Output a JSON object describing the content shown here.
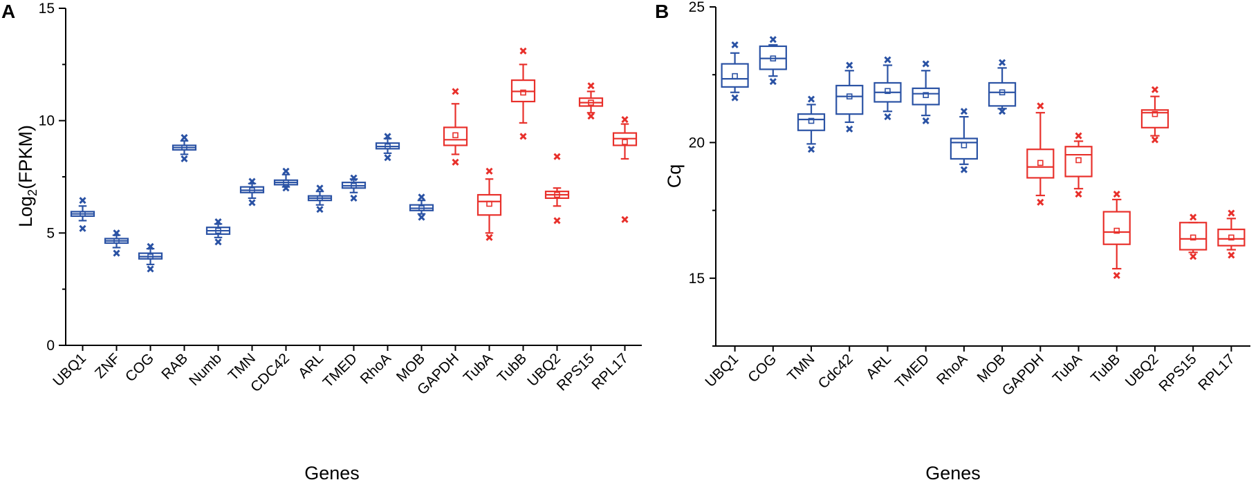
{
  "colors": {
    "blue": "#2a52a4",
    "red": "#e8302b"
  },
  "chart_data": [
    {
      "type": "box",
      "panel": "A",
      "xlabel": "Genes",
      "ylabel_main": "Log",
      "ylabel_sub": "2",
      "ylabel_rest": "(FPKM)",
      "ylim": [
        0,
        15
      ],
      "yticks": [
        0,
        5,
        10,
        15
      ],
      "series": [
        {
          "name": "UBQ1",
          "color": "blue",
          "q1": 5.75,
          "median": 5.85,
          "q3": 5.95,
          "mean": 5.85,
          "wlow": 5.55,
          "whigh": 6.2,
          "outliers": [
            5.2,
            6.45
          ]
        },
        {
          "name": "ZNF",
          "color": "blue",
          "q1": 4.55,
          "median": 4.65,
          "q3": 4.75,
          "mean": 4.65,
          "wlow": 4.35,
          "whigh": 4.9,
          "outliers": [
            4.1,
            5.0
          ]
        },
        {
          "name": "COG",
          "color": "blue",
          "q1": 3.85,
          "median": 3.95,
          "q3": 4.1,
          "mean": 3.95,
          "wlow": 3.6,
          "whigh": 4.3,
          "outliers": [
            3.4,
            4.4
          ]
        },
        {
          "name": "RAB",
          "color": "blue",
          "q1": 8.7,
          "median": 8.8,
          "q3": 8.9,
          "mean": 8.8,
          "wlow": 8.5,
          "whigh": 9.1,
          "outliers": [
            8.3,
            9.25
          ]
        },
        {
          "name": "Numb",
          "color": "blue",
          "q1": 4.95,
          "median": 5.1,
          "q3": 5.25,
          "mean": 5.1,
          "wlow": 4.8,
          "whigh": 5.4,
          "outliers": [
            4.6,
            5.5
          ]
        },
        {
          "name": "TMN",
          "color": "blue",
          "q1": 6.8,
          "median": 6.9,
          "q3": 7.05,
          "mean": 6.9,
          "wlow": 6.55,
          "whigh": 7.2,
          "outliers": [
            6.35,
            7.3
          ]
        },
        {
          "name": "CDC42",
          "color": "blue",
          "q1": 7.15,
          "median": 7.25,
          "q3": 7.35,
          "mean": 7.25,
          "wlow": 7.05,
          "whigh": 7.6,
          "outliers": [
            7.0,
            7.75
          ]
        },
        {
          "name": "ARL",
          "color": "blue",
          "q1": 6.45,
          "median": 6.55,
          "q3": 6.65,
          "mean": 6.55,
          "wlow": 6.25,
          "whigh": 6.85,
          "outliers": [
            6.05,
            7.0
          ]
        },
        {
          "name": "TMED",
          "color": "blue",
          "q1": 7.0,
          "median": 7.1,
          "q3": 7.25,
          "mean": 7.1,
          "wlow": 6.8,
          "whigh": 7.4,
          "outliers": [
            6.55,
            7.45
          ]
        },
        {
          "name": "RhoA",
          "color": "blue",
          "q1": 8.75,
          "median": 8.85,
          "q3": 9.0,
          "mean": 8.85,
          "wlow": 8.55,
          "whigh": 9.2,
          "outliers": [
            8.35,
            9.3
          ]
        },
        {
          "name": "MOB",
          "color": "blue",
          "q1": 6.0,
          "median": 6.1,
          "q3": 6.25,
          "mean": 6.1,
          "wlow": 5.85,
          "whigh": 6.45,
          "outliers": [
            5.7,
            6.6
          ]
        },
        {
          "name": "GAPDH",
          "color": "red",
          "q1": 8.9,
          "median": 9.15,
          "q3": 9.7,
          "mean": 9.35,
          "wlow": 8.5,
          "whigh": 10.75,
          "outliers": [
            8.15,
            11.3
          ]
        },
        {
          "name": "TubA",
          "color": "red",
          "q1": 5.8,
          "median": 6.4,
          "q3": 6.7,
          "mean": 6.3,
          "wlow": 5.0,
          "whigh": 7.4,
          "outliers": [
            4.8,
            7.75
          ]
        },
        {
          "name": "TubB",
          "color": "red",
          "q1": 10.85,
          "median": 11.3,
          "q3": 11.8,
          "mean": 11.25,
          "wlow": 9.9,
          "whigh": 12.5,
          "outliers": [
            9.3,
            13.1
          ]
        },
        {
          "name": "UBQ2",
          "color": "red",
          "q1": 6.55,
          "median": 6.7,
          "q3": 6.85,
          "mean": 6.7,
          "wlow": 6.2,
          "whigh": 7.0,
          "outliers": [
            5.55,
            8.4
          ]
        },
        {
          "name": "RPS15",
          "color": "red",
          "q1": 10.65,
          "median": 10.8,
          "q3": 11.0,
          "mean": 10.8,
          "wlow": 10.35,
          "whigh": 11.3,
          "outliers": [
            10.2,
            11.55
          ]
        },
        {
          "name": "RPL17",
          "color": "red",
          "q1": 8.9,
          "median": 9.2,
          "q3": 9.45,
          "mean": 9.05,
          "wlow": 8.3,
          "whigh": 9.85,
          "outliers": [
            5.6,
            10.05
          ]
        }
      ]
    },
    {
      "type": "box",
      "panel": "B",
      "xlabel": "Genes",
      "ylabel_main": "Cq",
      "ylabel_sub": "",
      "ylabel_rest": "",
      "ylim": [
        12.5,
        25
      ],
      "yticks": [
        15,
        20,
        25
      ],
      "series": [
        {
          "name": "UBQ1",
          "color": "blue",
          "q1": 22.05,
          "median": 22.35,
          "q3": 22.9,
          "mean": 22.45,
          "wlow": 21.85,
          "whigh": 23.3,
          "outliers": [
            21.65,
            23.6
          ]
        },
        {
          "name": "COG",
          "color": "blue",
          "q1": 22.7,
          "median": 23.1,
          "q3": 23.55,
          "mean": 23.1,
          "wlow": 22.45,
          "whigh": 23.6,
          "outliers": [
            22.25,
            23.8
          ]
        },
        {
          "name": "TMN",
          "color": "blue",
          "q1": 20.45,
          "median": 20.85,
          "q3": 21.05,
          "mean": 20.8,
          "wlow": 19.95,
          "whigh": 21.4,
          "outliers": [
            19.75,
            21.6
          ]
        },
        {
          "name": "Cdc42",
          "color": "blue",
          "q1": 21.05,
          "median": 21.7,
          "q3": 22.1,
          "mean": 21.7,
          "wlow": 20.75,
          "whigh": 22.65,
          "outliers": [
            20.5,
            22.85
          ]
        },
        {
          "name": "ARL",
          "color": "blue",
          "q1": 21.5,
          "median": 21.85,
          "q3": 22.2,
          "mean": 21.9,
          "wlow": 21.15,
          "whigh": 22.85,
          "outliers": [
            20.95,
            23.05
          ]
        },
        {
          "name": "TMED",
          "color": "blue",
          "q1": 21.4,
          "median": 21.8,
          "q3": 22.0,
          "mean": 21.75,
          "wlow": 21.0,
          "whigh": 22.65,
          "outliers": [
            20.8,
            22.9
          ]
        },
        {
          "name": "RhoA",
          "color": "blue",
          "q1": 19.4,
          "median": 20.0,
          "q3": 20.15,
          "mean": 19.9,
          "wlow": 19.2,
          "whigh": 20.95,
          "outliers": [
            19.0,
            21.15
          ]
        },
        {
          "name": "MOB",
          "color": "blue",
          "q1": 21.35,
          "median": 21.85,
          "q3": 22.2,
          "mean": 21.85,
          "wlow": 21.25,
          "whigh": 22.75,
          "outliers": [
            21.15,
            22.95
          ]
        },
        {
          "name": "GAPDH",
          "color": "red",
          "q1": 18.7,
          "median": 19.1,
          "q3": 19.75,
          "mean": 19.25,
          "wlow": 18.05,
          "whigh": 21.1,
          "outliers": [
            17.8,
            21.35
          ]
        },
        {
          "name": "TubA",
          "color": "red",
          "q1": 18.75,
          "median": 19.55,
          "q3": 19.85,
          "mean": 19.35,
          "wlow": 18.3,
          "whigh": 20.05,
          "outliers": [
            18.1,
            20.25
          ]
        },
        {
          "name": "TubB",
          "color": "red",
          "q1": 16.25,
          "median": 16.7,
          "q3": 17.45,
          "mean": 16.75,
          "wlow": 15.35,
          "whigh": 17.9,
          "outliers": [
            15.1,
            18.1
          ]
        },
        {
          "name": "UBQ2",
          "color": "red",
          "q1": 20.55,
          "median": 21.1,
          "q3": 21.2,
          "mean": 21.05,
          "wlow": 20.25,
          "whigh": 21.7,
          "outliers": [
            20.1,
            21.95
          ]
        },
        {
          "name": "RPS15",
          "color": "red",
          "q1": 16.05,
          "median": 16.45,
          "q3": 17.05,
          "mean": 16.5,
          "wlow": 15.95,
          "whigh": 17.05,
          "outliers": [
            15.8,
            17.25
          ]
        },
        {
          "name": "RPL17",
          "color": "red",
          "q1": 16.2,
          "median": 16.45,
          "q3": 16.8,
          "mean": 16.5,
          "wlow": 16.05,
          "whigh": 17.2,
          "outliers": [
            15.85,
            17.4
          ]
        }
      ]
    }
  ]
}
